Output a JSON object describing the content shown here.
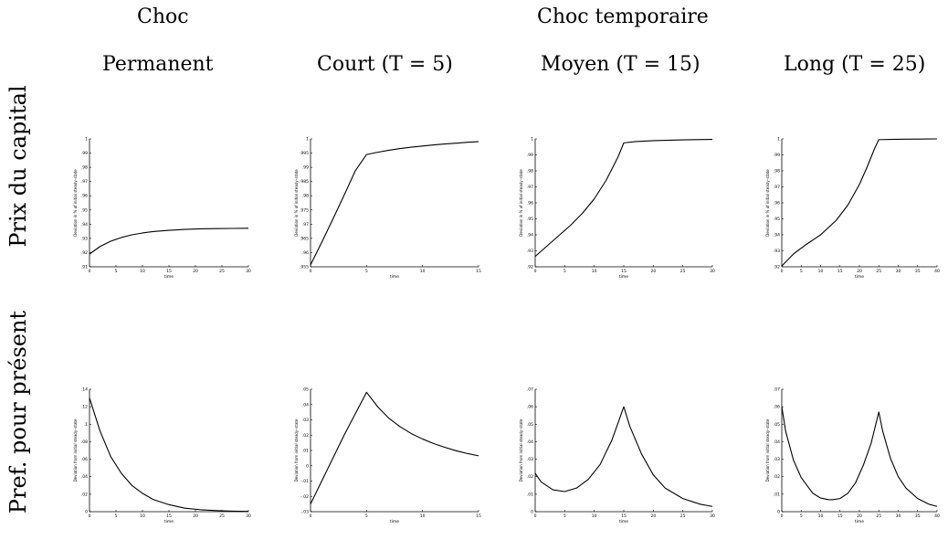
{
  "headers": {
    "group_permanent": "Choc",
    "group_temporary": "Choc temporaire",
    "columns": [
      "Permanent",
      "Court (T = 5)",
      "Moyen (T = 15)",
      "Long (T = 25)"
    ]
  },
  "row_labels": [
    "Prix du capital",
    "Pref. pour présent"
  ],
  "chart_data": [
    {
      "type": "line",
      "panel": "prix-permanent",
      "xlabel": "time",
      "ylabel": "Deviation in % of initial steady–state",
      "xlim": [
        0,
        30
      ],
      "ylim": [
        0.91,
        1.0
      ],
      "xticks": [
        0,
        5,
        10,
        15,
        20,
        25,
        30
      ],
      "yticks": [
        0.91,
        0.92,
        0.93,
        0.94,
        0.95,
        0.96,
        0.97,
        0.98,
        0.99,
        1
      ],
      "x": [
        0,
        2,
        4,
        6,
        8,
        10,
        12,
        15,
        18,
        21,
        24,
        27,
        30
      ],
      "values": [
        0.919,
        0.9243,
        0.928,
        0.9306,
        0.9325,
        0.9338,
        0.9348,
        0.9357,
        0.9363,
        0.9367,
        0.9369,
        0.937,
        0.9371
      ]
    },
    {
      "type": "line",
      "panel": "prix-court",
      "xlabel": "time",
      "ylabel": "Deviation in % of initial steady–state",
      "xlim": [
        0,
        15
      ],
      "ylim": [
        0.955,
        1.0
      ],
      "xticks": [
        0,
        5,
        10,
        15
      ],
      "yticks": [
        0.955,
        0.96,
        0.965,
        0.97,
        0.975,
        0.98,
        0.985,
        0.99,
        0.995,
        1
      ],
      "x": [
        0,
        1,
        2,
        3,
        4,
        5,
        6,
        7,
        8,
        9,
        10,
        11,
        12,
        13,
        14,
        15
      ],
      "values": [
        0.9557,
        0.9636,
        0.9718,
        0.9802,
        0.9888,
        0.9945,
        0.9953,
        0.996,
        0.9966,
        0.9971,
        0.9975,
        0.9979,
        0.9982,
        0.9985,
        0.9988,
        0.999
      ]
    },
    {
      "type": "line",
      "panel": "prix-moyen",
      "xlabel": "time",
      "ylabel": "Deviation in % of initial steady–state",
      "xlim": [
        0,
        30
      ],
      "ylim": [
        0.92,
        1.0
      ],
      "xticks": [
        0,
        5,
        10,
        15,
        20,
        25,
        30
      ],
      "yticks": [
        0.92,
        0.93,
        0.94,
        0.95,
        0.96,
        0.97,
        0.98,
        0.99,
        1
      ],
      "x": [
        0,
        2,
        4,
        6,
        8,
        10,
        12,
        14,
        15,
        17,
        20,
        25,
        30
      ],
      "values": [
        0.9265,
        0.933,
        0.9395,
        0.946,
        0.9535,
        0.9625,
        0.974,
        0.9885,
        0.9975,
        0.9983,
        0.9989,
        0.9994,
        0.9997
      ]
    },
    {
      "type": "line",
      "panel": "prix-long",
      "xlabel": "time",
      "ylabel": "Deviation in % of initial steady–state",
      "xlim": [
        0,
        40
      ],
      "ylim": [
        0.92,
        1.0
      ],
      "xticks": [
        0,
        5,
        10,
        15,
        20,
        25,
        30,
        35,
        40
      ],
      "yticks": [
        0.92,
        0.93,
        0.94,
        0.95,
        0.96,
        0.97,
        0.98,
        0.99,
        1
      ],
      "x": [
        0,
        3,
        6,
        10,
        14,
        17,
        20,
        22,
        24,
        25,
        28,
        32,
        36,
        40
      ],
      "values": [
        0.9205,
        0.928,
        0.9335,
        0.94,
        0.949,
        0.9585,
        0.9715,
        0.9825,
        0.9945,
        0.9995,
        0.9997,
        0.9998,
        0.9999,
        1.0
      ]
    },
    {
      "type": "line",
      "panel": "pref-permanent",
      "xlabel": "time",
      "ylabel": "Deviation from initial steady–state",
      "xlim": [
        0,
        30
      ],
      "ylim": [
        0,
        0.14
      ],
      "xticks": [
        0,
        5,
        10,
        15,
        20,
        25,
        30
      ],
      "yticks": [
        0,
        0.02,
        0.04,
        0.06,
        0.08,
        0.1,
        0.12,
        0.14
      ],
      "x": [
        0,
        2,
        4,
        6,
        8,
        10,
        12,
        15,
        18,
        21,
        24,
        27,
        30
      ],
      "values": [
        0.13,
        0.092,
        0.063,
        0.044,
        0.03,
        0.021,
        0.014,
        0.008,
        0.004,
        0.0022,
        0.0012,
        0.0006,
        0.0003
      ]
    },
    {
      "type": "line",
      "panel": "pref-court",
      "xlabel": "time",
      "ylabel": "Deviation from initial steady–state",
      "xlim": [
        0,
        15
      ],
      "ylim": [
        -0.03,
        0.05
      ],
      "xticks": [
        0,
        5,
        10,
        15
      ],
      "yticks": [
        -0.03,
        -0.02,
        -0.01,
        0,
        0.01,
        0.02,
        0.03,
        0.04,
        0.05
      ],
      "x": [
        0,
        1,
        2,
        3,
        4,
        5,
        6,
        7,
        8,
        9,
        10,
        11,
        12,
        13,
        14,
        15
      ],
      "values": [
        -0.025,
        -0.01,
        0.005,
        0.02,
        0.034,
        0.048,
        0.0385,
        0.031,
        0.0255,
        0.021,
        0.0175,
        0.0145,
        0.012,
        0.0098,
        0.008,
        0.0065
      ]
    },
    {
      "type": "line",
      "panel": "pref-moyen",
      "xlabel": "time",
      "ylabel": "Deviation from initial steady–state",
      "xlim": [
        0,
        30
      ],
      "ylim": [
        0,
        0.07
      ],
      "xticks": [
        0,
        5,
        10,
        15,
        20,
        25,
        30
      ],
      "yticks": [
        0,
        0.01,
        0.02,
        0.03,
        0.04,
        0.05,
        0.06,
        0.07
      ],
      "x": [
        0,
        1,
        3,
        5,
        7,
        9,
        11,
        13,
        15,
        16,
        18,
        20,
        22,
        25,
        28,
        30
      ],
      "values": [
        0.022,
        0.017,
        0.0125,
        0.0115,
        0.0135,
        0.0185,
        0.027,
        0.041,
        0.06,
        0.049,
        0.033,
        0.021,
        0.0135,
        0.0075,
        0.0042,
        0.003
      ]
    },
    {
      "type": "line",
      "panel": "pref-long",
      "xlabel": "time",
      "ylabel": "Deviation from initial steady–state",
      "xlim": [
        0,
        40
      ],
      "ylim": [
        0,
        0.07
      ],
      "xticks": [
        0,
        5,
        10,
        15,
        20,
        25,
        30,
        35,
        40
      ],
      "yticks": [
        0,
        0.01,
        0.02,
        0.03,
        0.04,
        0.05,
        0.06,
        0.07
      ],
      "x": [
        0,
        1,
        3,
        5,
        8,
        10,
        12,
        13,
        15,
        17,
        19,
        21,
        23,
        25,
        26,
        28,
        30,
        32,
        35,
        38,
        40
      ],
      "values": [
        0.06,
        0.046,
        0.0295,
        0.0195,
        0.0105,
        0.0078,
        0.0069,
        0.0068,
        0.0075,
        0.0105,
        0.0165,
        0.0265,
        0.039,
        0.057,
        0.046,
        0.0305,
        0.02,
        0.0135,
        0.0075,
        0.0042,
        0.003
      ]
    }
  ]
}
